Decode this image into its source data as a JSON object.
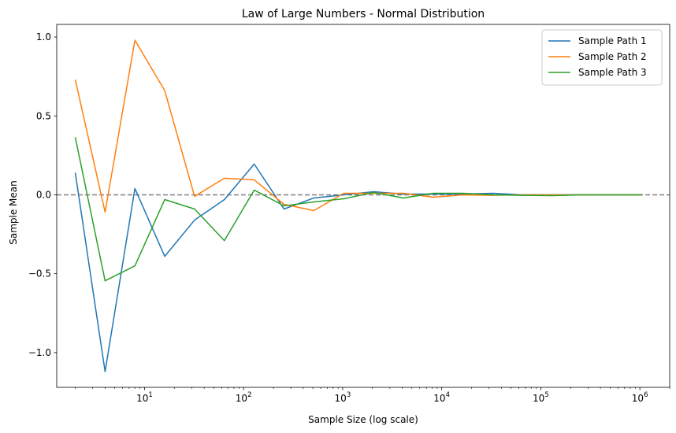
{
  "chart_data": {
    "type": "line",
    "title": "Law of Large Numbers - Normal Distribution",
    "xlabel": "Sample Size (log scale)",
    "ylabel": "Sample Mean",
    "x_scale": "log",
    "xlim": [
      1.3,
      2000000
    ],
    "ylim": [
      -1.22,
      1.08
    ],
    "x_ticks": [
      {
        "base": "10",
        "exp": "1",
        "value": 10
      },
      {
        "base": "10",
        "exp": "2",
        "value": 100
      },
      {
        "base": "10",
        "exp": "3",
        "value": 1000
      },
      {
        "base": "10",
        "exp": "4",
        "value": 10000
      },
      {
        "base": "10",
        "exp": "5",
        "value": 100000
      },
      {
        "base": "10",
        "exp": "6",
        "value": 1000000
      }
    ],
    "y_ticks": [
      {
        "label": "1.0",
        "value": 1.0
      },
      {
        "label": "0.5",
        "value": 0.5
      },
      {
        "label": "0.0",
        "value": 0.0
      },
      {
        "label": "−0.5",
        "value": -0.5
      },
      {
        "label": "−1.0",
        "value": -1.0
      }
    ],
    "x": [
      2,
      4,
      8,
      16,
      32,
      64,
      128,
      256,
      512,
      1024,
      2048,
      4096,
      8192,
      16384,
      32768,
      65536,
      131072,
      262144,
      524288,
      1048576
    ],
    "series": [
      {
        "name": "Sample Path 1",
        "color": "#1f77b4",
        "values": [
          0.14,
          -1.12,
          0.04,
          -0.39,
          -0.16,
          -0.03,
          0.195,
          -0.09,
          -0.02,
          0.0,
          0.02,
          0.005,
          0.005,
          0.005,
          0.01,
          0.0,
          0.0,
          0.0,
          0.0,
          0.0
        ]
      },
      {
        "name": "Sample Path 2",
        "color": "#ff7f0e",
        "values": [
          0.73,
          -0.11,
          0.98,
          0.66,
          -0.01,
          0.105,
          0.095,
          -0.06,
          -0.1,
          0.01,
          0.01,
          0.01,
          -0.015,
          0.0,
          -0.003,
          0.0,
          0.0,
          0.0,
          0.0,
          0.0
        ]
      },
      {
        "name": "Sample Path 3",
        "color": "#2ca02c",
        "values": [
          0.365,
          -0.545,
          -0.45,
          -0.03,
          -0.09,
          -0.29,
          0.03,
          -0.07,
          -0.045,
          -0.025,
          0.015,
          -0.02,
          0.01,
          0.01,
          0.0,
          -0.003,
          -0.005,
          0.0,
          0.0,
          0.0
        ]
      }
    ],
    "reference_line": {
      "y": 0,
      "color": "#808080",
      "style": "dashed"
    },
    "legend_position": "top-right",
    "grid": false
  }
}
